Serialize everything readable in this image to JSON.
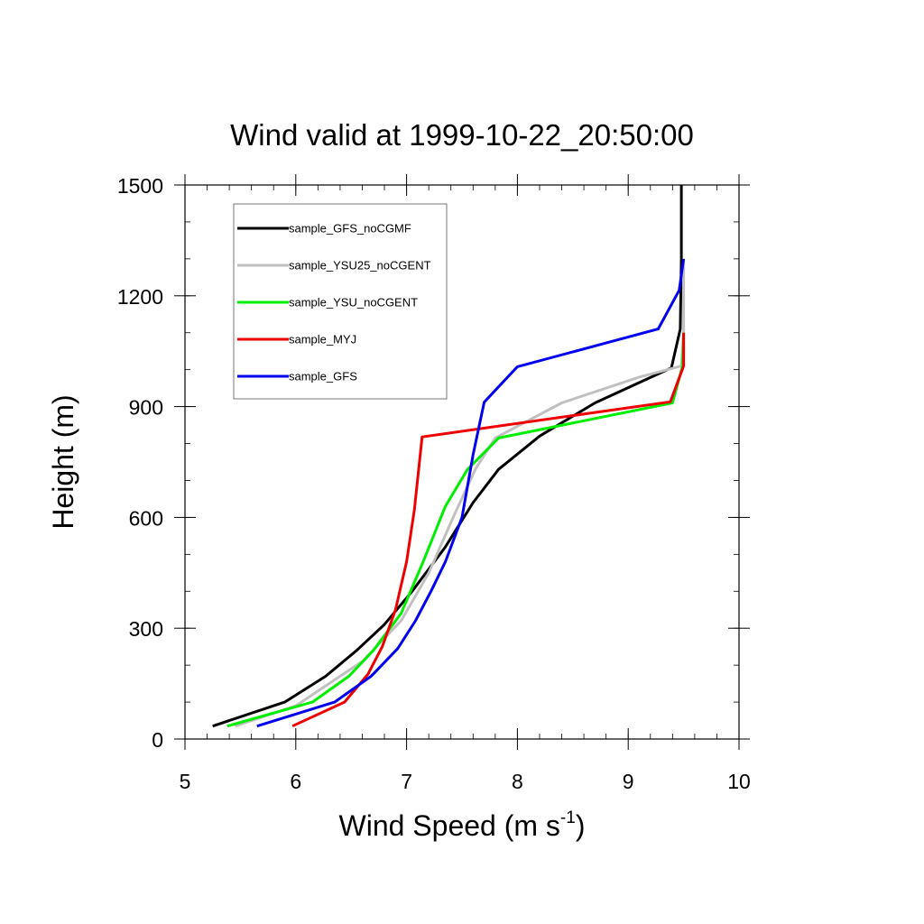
{
  "chart_data": {
    "type": "line",
    "title": "Wind valid at 1999-10-22_20:50:00",
    "xlabel": "Wind Speed (m s",
    "xlabel_superscript": "-1",
    "xlabel_suffix": ")",
    "ylabel": "Height (m)",
    "xlim": [
      5,
      10
    ],
    "ylim": [
      0,
      1500
    ],
    "xticks": [
      5,
      6,
      7,
      8,
      9,
      10
    ],
    "yticks": [
      0,
      300,
      600,
      900,
      1200,
      1500
    ],
    "grid": false,
    "legend_position": "top-left",
    "series": [
      {
        "name": "sample_GFS_noCGMF",
        "color": "#000000",
        "points": [
          [
            5.25,
            35
          ],
          [
            5.9,
            100
          ],
          [
            6.27,
            170
          ],
          [
            6.55,
            240
          ],
          [
            6.8,
            310
          ],
          [
            7.05,
            400
          ],
          [
            7.35,
            520
          ],
          [
            7.6,
            640
          ],
          [
            7.83,
            730
          ],
          [
            8.2,
            820
          ],
          [
            8.7,
            910
          ],
          [
            9.39,
            1005
          ],
          [
            9.47,
            1110
          ],
          [
            9.48,
            1300
          ],
          [
            9.48,
            1500
          ]
        ]
      },
      {
        "name": "sample_YSU25_noCGENT",
        "color": "#c0c0c0",
        "points": [
          [
            5.45,
            35
          ],
          [
            6.0,
            90
          ],
          [
            6.3,
            150
          ],
          [
            6.6,
            210
          ],
          [
            6.95,
            320
          ],
          [
            7.2,
            450
          ],
          [
            7.42,
            600
          ],
          [
            7.62,
            730
          ],
          [
            7.8,
            815
          ],
          [
            8.4,
            910
          ],
          [
            9.1,
            980
          ],
          [
            9.48,
            1010
          ],
          [
            9.5,
            1100
          ],
          [
            9.5,
            1300
          ]
        ]
      },
      {
        "name": "sample_YSU_noCGENT",
        "color": "#00ee00",
        "points": [
          [
            5.38,
            35
          ],
          [
            6.15,
            100
          ],
          [
            6.48,
            170
          ],
          [
            6.7,
            240
          ],
          [
            6.95,
            340
          ],
          [
            7.15,
            480
          ],
          [
            7.35,
            630
          ],
          [
            7.55,
            730
          ],
          [
            7.83,
            815
          ],
          [
            9.4,
            910
          ],
          [
            9.49,
            1010
          ],
          [
            9.5,
            1100
          ]
        ]
      },
      {
        "name": "sample_MYJ",
        "color": "#ee0000",
        "points": [
          [
            5.97,
            35
          ],
          [
            6.44,
            100
          ],
          [
            6.65,
            175
          ],
          [
            6.78,
            250
          ],
          [
            6.9,
            350
          ],
          [
            7.0,
            480
          ],
          [
            7.07,
            620
          ],
          [
            7.14,
            818
          ],
          [
            9.38,
            913
          ],
          [
            9.5,
            1010
          ],
          [
            9.5,
            1100
          ]
        ]
      },
      {
        "name": "sample_GFS",
        "color": "#0000ee",
        "points": [
          [
            5.65,
            35
          ],
          [
            6.35,
            100
          ],
          [
            6.68,
            170
          ],
          [
            6.92,
            245
          ],
          [
            7.08,
            320
          ],
          [
            7.22,
            400
          ],
          [
            7.35,
            480
          ],
          [
            7.5,
            600
          ],
          [
            7.6,
            770
          ],
          [
            7.7,
            912
          ],
          [
            8.0,
            1008
          ],
          [
            9.27,
            1110
          ],
          [
            9.46,
            1215
          ],
          [
            9.5,
            1300
          ]
        ]
      }
    ]
  }
}
